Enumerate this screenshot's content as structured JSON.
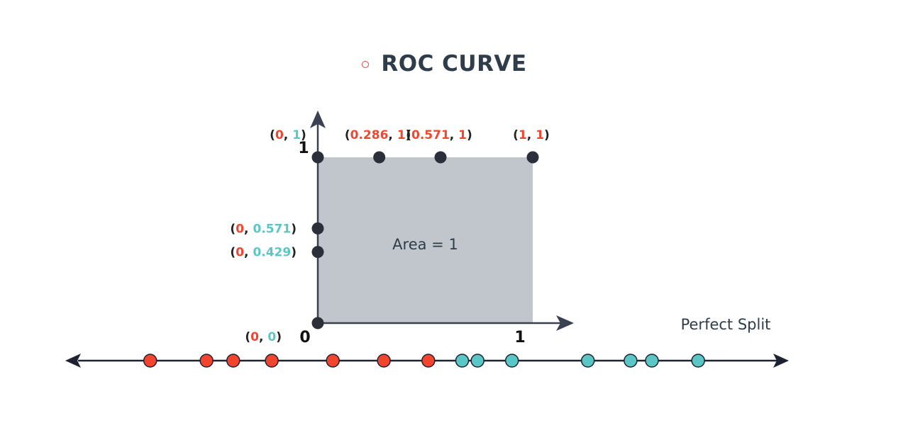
{
  "title": "ROC CURVE",
  "colors": {
    "red": "#f2452e",
    "teal": "#5bc6c6",
    "dark": "#2a2f3a",
    "area_fill": "#c0c6cc",
    "text": "#2e3d49"
  },
  "graph": {
    "area_label": "Area = 1",
    "tick_y_top": "1",
    "tick_origin": "0",
    "tick_x_right": "1",
    "points": [
      {
        "x": 0,
        "y": 1,
        "label_x": "0",
        "label_y": "1",
        "label_x_color": "red",
        "label_y_color": "teal"
      },
      {
        "x": 0.286,
        "y": 1,
        "label_x": "0.286",
        "label_y": "1",
        "label_x_color": "red",
        "label_y_color": "red"
      },
      {
        "x": 0.571,
        "y": 1,
        "label_x": "0.571",
        "label_y": "1",
        "label_x_color": "red",
        "label_y_color": "red"
      },
      {
        "x": 1,
        "y": 1,
        "label_x": "1",
        "label_y": "1",
        "label_x_color": "red",
        "label_y_color": "red"
      },
      {
        "x": 0,
        "y": 0.429,
        "label_x": "0",
        "label_y": "0.429",
        "label_x_color": "red",
        "label_y_color": "teal"
      },
      {
        "x": 0,
        "y": 0.571,
        "label_x": "0",
        "label_y": "0.571",
        "label_x_color": "red",
        "label_y_color": "teal"
      },
      {
        "x": 0,
        "y": 0,
        "label_x": "0",
        "label_y": "0",
        "label_x_color": "red",
        "label_y_color": "teal"
      }
    ]
  },
  "number_line": {
    "label": "Perfect Split",
    "dots": [
      {
        "value": 0.02,
        "color": "red"
      },
      {
        "value": 0.115,
        "color": "red"
      },
      {
        "value": 0.16,
        "color": "red"
      },
      {
        "value": 0.225,
        "color": "red"
      },
      {
        "value": 0.328,
        "color": "red"
      },
      {
        "value": 0.414,
        "color": "red"
      },
      {
        "value": 0.489,
        "color": "red"
      },
      {
        "value": 0.546,
        "color": "teal"
      },
      {
        "value": 0.572,
        "color": "teal"
      },
      {
        "value": 0.63,
        "color": "teal"
      },
      {
        "value": 0.758,
        "color": "teal"
      },
      {
        "value": 0.83,
        "color": "teal"
      },
      {
        "value": 0.866,
        "color": "teal"
      },
      {
        "value": 0.944,
        "color": "teal"
      }
    ]
  }
}
